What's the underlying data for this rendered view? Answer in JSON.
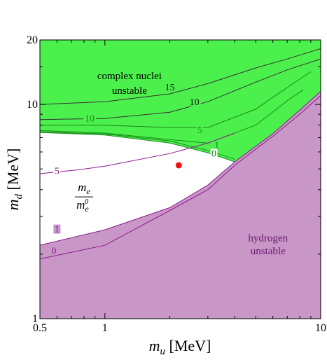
{
  "chart_data": {
    "type": "area",
    "title": "",
    "xlabel": "m_u [MeV]",
    "ylabel": "m_d [MeV]",
    "x_scale": "log",
    "y_scale": "log",
    "xlim": [
      0.5,
      10
    ],
    "ylim": [
      1,
      20
    ],
    "x_ticks": [
      0.5,
      1,
      10
    ],
    "x_tick_labels": [
      "0.5",
      "1",
      "10"
    ],
    "y_ticks": [
      1,
      10,
      20
    ],
    "y_tick_labels": [
      "1",
      "10",
      "20"
    ],
    "grid": false,
    "legend": "none",
    "colors": {
      "complex_nuclei_region": "#4cf04c",
      "hydrogen_region": "#c897c8",
      "allowed_region": "#ffffff",
      "green_contours": "#1a8a1a",
      "purple_contours": "#8a1a8a",
      "dark_contours": "#000000",
      "point": "#ee1111"
    },
    "regions": [
      {
        "name": "complex nuclei unstable",
        "label_lines": [
          "complex nuclei",
          "unstable"
        ],
        "color": "#4cf04c",
        "label_color": "#000000",
        "boundary": [
          [
            0.5,
            7.4
          ],
          [
            1.0,
            7.2
          ],
          [
            2.0,
            6.6
          ],
          [
            3.0,
            5.95
          ],
          [
            4.0,
            5.4
          ]
        ],
        "bound": "above"
      },
      {
        "name": "hydrogen unstable",
        "label_lines": [
          "hydrogen",
          "unstable"
        ],
        "color": "#c897c8",
        "label_color": "#6a1a6a",
        "boundary": [
          [
            0.5,
            2.2
          ],
          [
            1.0,
            2.6
          ],
          [
            2.0,
            3.3
          ],
          [
            3.0,
            4.2
          ],
          [
            4.0,
            5.4
          ],
          [
            6.0,
            7.3
          ],
          [
            8.0,
            9.4
          ],
          [
            10.0,
            11.5
          ]
        ],
        "bound": "below"
      }
    ],
    "contours": {
      "green_nuclei": [
        {
          "label": "15",
          "label_at": [
            2.0,
            11.8
          ],
          "points": [
            [
              0.5,
              10.0
            ],
            [
              1.0,
              10.3
            ],
            [
              2.0,
              11.2
            ],
            [
              3.0,
              12.5
            ],
            [
              5.0,
              14.8
            ],
            [
              7.0,
              16.3
            ],
            [
              10.0,
              18.2
            ]
          ]
        },
        {
          "label": "10",
          "label_at": [
            2.6,
            10.1
          ],
          "points": [
            [
              0.5,
              8.5
            ],
            [
              1.0,
              8.6
            ],
            [
              2.0,
              9.2
            ],
            [
              3.0,
              10.3
            ],
            [
              5.0,
              12.7
            ],
            [
              7.0,
              14.5
            ],
            [
              10.0,
              16.3
            ]
          ]
        },
        {
          "label": "10",
          "label_at": [
            0.85,
            8.45
          ],
          "points": [
            [
              0.5,
              8.0
            ],
            [
              1.0,
              8.0
            ],
            [
              2.0,
              7.8
            ],
            [
              3.0,
              7.8
            ],
            [
              5.0,
              9.5
            ],
            [
              7.0,
              12.0
            ],
            [
              9.0,
              14.2
            ]
          ]
        },
        {
          "label": "5",
          "label_at": [
            2.75,
            7.45
          ],
          "points": [
            [
              0.5,
              7.55
            ],
            [
              1.0,
              7.35
            ],
            [
              2.0,
              6.85
            ],
            [
              3.0,
              6.6
            ],
            [
              5.0,
              8.0
            ],
            [
              7.0,
              10.4
            ],
            [
              8.3,
              11.7
            ]
          ]
        },
        {
          "label": "1",
          "label_at": [
            3.3,
            6.35
          ],
          "points": [
            [
              0.5,
              7.45
            ],
            [
              1.0,
              7.28
            ],
            [
              2.0,
              6.75
            ],
            [
              3.0,
              6.1
            ],
            [
              4.0,
              5.55
            ]
          ]
        },
        {
          "label": "0",
          "label_at": [
            3.2,
            5.8
          ],
          "points": [
            [
              0.5,
              7.4
            ],
            [
              1.0,
              7.2
            ],
            [
              2.0,
              6.6
            ],
            [
              3.0,
              5.95
            ],
            [
              4.0,
              5.4
            ]
          ]
        }
      ],
      "purple_hydrogen": [
        {
          "label": "5",
          "label_at": [
            0.6,
            4.8
          ],
          "points": [
            [
              0.5,
              4.75
            ],
            [
              0.75,
              4.95
            ],
            [
              1.0,
              5.15
            ],
            [
              2.0,
              5.9
            ],
            [
              3.0,
              6.6
            ],
            [
              4.0,
              7.35
            ]
          ]
        },
        {
          "label": "1",
          "label_at": [
            0.6,
            2.57
          ],
          "points": [
            [
              0.5,
              2.2
            ],
            [
              1.0,
              2.6
            ],
            [
              2.0,
              3.3
            ],
            [
              3.0,
              4.2
            ],
            [
              4.0,
              5.4
            ],
            [
              6.0,
              7.3
            ],
            [
              8.0,
              9.4
            ],
            [
              10.0,
              11.5
            ]
          ]
        },
        {
          "label": "0",
          "label_at": [
            0.58,
            2.04
          ],
          "points": [
            [
              0.5,
              1.9
            ],
            [
              1.0,
              2.2
            ],
            [
              2.0,
              3.2
            ],
            [
              3.0,
              4.0
            ],
            [
              4.0,
              5.2
            ],
            [
              6.0,
              7.1
            ],
            [
              8.0,
              9.0
            ],
            [
              10.0,
              11.0
            ]
          ]
        }
      ]
    },
    "region_label_positions": {
      "complex nuclei unstable": [
        [
          1.3,
          13.1
        ],
        [
          1.3,
          11.2
        ]
      ],
      "hydrogen unstable": [
        [
          5.7,
          2.3
        ],
        [
          5.7,
          2.0
        ]
      ]
    },
    "ratio_label": {
      "numerator": "m_e",
      "denominator": "m_e^0",
      "at": [
        0.8,
        3.7
      ]
    },
    "point": {
      "x": 2.2,
      "y": 5.2,
      "color": "#ee1111"
    }
  }
}
